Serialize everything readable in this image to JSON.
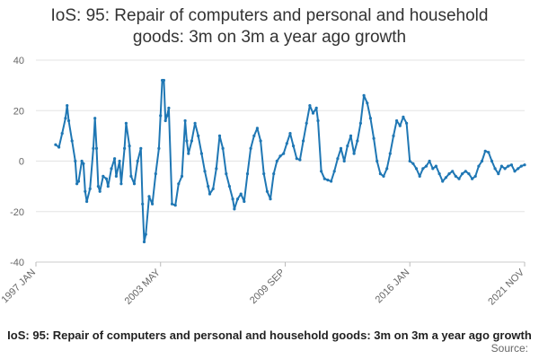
{
  "chart_data": {
    "type": "line",
    "title_lines": [
      "IoS: 95: Repair of computers and personal and household",
      "goods: 3m on 3m a year ago growth"
    ],
    "xlabel": "",
    "ylabel": "",
    "ylim": [
      -40,
      40
    ],
    "yticks": [
      40,
      20,
      0,
      -20,
      -40
    ],
    "xlim": [
      "1997-01",
      "2021-11"
    ],
    "xticks": [
      {
        "label": "1997 JAN",
        "date": "1997-01"
      },
      {
        "label": "2003 MAY",
        "date": "2003-05"
      },
      {
        "label": "2009 SEP",
        "date": "2009-09"
      },
      {
        "label": "2016 JAN",
        "date": "2016-01"
      },
      {
        "label": "2021 NOV",
        "date": "2021-11"
      }
    ],
    "grid": true,
    "legend": "none",
    "series": [
      {
        "color": "#1f77b4",
        "points": [
          [
            "1998-01",
            6.5
          ],
          [
            "1998-03",
            5.5
          ],
          [
            "1998-05",
            11
          ],
          [
            "1998-07",
            17
          ],
          [
            "1998-08",
            22
          ],
          [
            "1998-09",
            16
          ],
          [
            "1998-11",
            8
          ],
          [
            "1999-01",
            0
          ],
          [
            "1999-02",
            -9
          ],
          [
            "1999-03",
            -8
          ],
          [
            "1999-05",
            0
          ],
          [
            "1999-06",
            -1
          ],
          [
            "1999-07",
            -12
          ],
          [
            "1999-08",
            -16
          ],
          [
            "1999-10",
            -11
          ],
          [
            "1999-12",
            5
          ],
          [
            "2000-01",
            17
          ],
          [
            "2000-02",
            5
          ],
          [
            "2000-03",
            -10
          ],
          [
            "2000-04",
            -12
          ],
          [
            "2000-06",
            -6
          ],
          [
            "2000-08",
            -7
          ],
          [
            "2000-09",
            -10
          ],
          [
            "2000-11",
            -3
          ],
          [
            "2001-01",
            1
          ],
          [
            "2001-02",
            -6
          ],
          [
            "2001-04",
            0
          ],
          [
            "2001-05",
            -9
          ],
          [
            "2001-07",
            5
          ],
          [
            "2001-08",
            15
          ],
          [
            "2001-10",
            6
          ],
          [
            "2001-11",
            -6
          ],
          [
            "2002-01",
            -9
          ],
          [
            "2002-03",
            0
          ],
          [
            "2002-05",
            5
          ],
          [
            "2002-06",
            -17
          ],
          [
            "2002-07",
            -32
          ],
          [
            "2002-08",
            -29
          ],
          [
            "2002-10",
            -14
          ],
          [
            "2002-12",
            -17
          ],
          [
            "2003-02",
            -5
          ],
          [
            "2003-04",
            5
          ],
          [
            "2003-05",
            18
          ],
          [
            "2003-06",
            32
          ],
          [
            "2003-07",
            32
          ],
          [
            "2003-08",
            16
          ],
          [
            "2003-09",
            18
          ],
          [
            "2003-10",
            21
          ],
          [
            "2003-12",
            -17
          ],
          [
            "2004-02",
            -17.5
          ],
          [
            "2004-04",
            -9
          ],
          [
            "2004-06",
            -6
          ],
          [
            "2004-08",
            16
          ],
          [
            "2004-09",
            8
          ],
          [
            "2004-10",
            3
          ],
          [
            "2004-12",
            8
          ],
          [
            "2005-02",
            15
          ],
          [
            "2005-04",
            10
          ],
          [
            "2005-06",
            3
          ],
          [
            "2005-08",
            -4
          ],
          [
            "2005-10",
            -10
          ],
          [
            "2005-11",
            -13
          ],
          [
            "2006-01",
            -11
          ],
          [
            "2006-03",
            -3
          ],
          [
            "2006-05",
            10
          ],
          [
            "2006-07",
            5
          ],
          [
            "2006-09",
            -5
          ],
          [
            "2006-11",
            -10
          ],
          [
            "2007-01",
            -15
          ],
          [
            "2007-02",
            -19
          ],
          [
            "2007-04",
            -15
          ],
          [
            "2007-06",
            -13
          ],
          [
            "2007-08",
            -16
          ],
          [
            "2007-10",
            -5
          ],
          [
            "2007-12",
            5
          ],
          [
            "2008-02",
            10
          ],
          [
            "2008-04",
            13
          ],
          [
            "2008-06",
            8
          ],
          [
            "2008-08",
            -5
          ],
          [
            "2008-10",
            -12
          ],
          [
            "2008-12",
            -15
          ],
          [
            "2009-02",
            -5
          ],
          [
            "2009-04",
            0
          ],
          [
            "2009-06",
            2
          ],
          [
            "2009-08",
            3
          ],
          [
            "2009-10",
            7
          ],
          [
            "2009-12",
            11
          ],
          [
            "2010-02",
            6
          ],
          [
            "2010-04",
            1
          ],
          [
            "2010-06",
            0.5
          ],
          [
            "2010-08",
            8
          ],
          [
            "2010-10",
            15
          ],
          [
            "2010-12",
            22
          ],
          [
            "2011-02",
            19
          ],
          [
            "2011-04",
            21
          ],
          [
            "2011-05",
            16
          ],
          [
            "2011-07",
            -4
          ],
          [
            "2011-09",
            -7
          ],
          [
            "2011-11",
            -7.5
          ],
          [
            "2012-01",
            -8
          ],
          [
            "2012-03",
            -4
          ],
          [
            "2012-05",
            1
          ],
          [
            "2012-07",
            5
          ],
          [
            "2012-09",
            0
          ],
          [
            "2012-11",
            6
          ],
          [
            "2013-01",
            10
          ],
          [
            "2013-03",
            3
          ],
          [
            "2013-05",
            8
          ],
          [
            "2013-07",
            15
          ],
          [
            "2013-09",
            26
          ],
          [
            "2013-11",
            23
          ],
          [
            "2014-01",
            17
          ],
          [
            "2014-03",
            9
          ],
          [
            "2014-05",
            0
          ],
          [
            "2014-07",
            -5
          ],
          [
            "2014-09",
            -6
          ],
          [
            "2014-11",
            -3
          ],
          [
            "2015-01",
            3
          ],
          [
            "2015-03",
            10
          ],
          [
            "2015-05",
            16
          ],
          [
            "2015-07",
            14
          ],
          [
            "2015-09",
            17.5
          ],
          [
            "2015-11",
            15
          ],
          [
            "2016-01",
            0
          ],
          [
            "2016-03",
            -1
          ],
          [
            "2016-05",
            -3
          ],
          [
            "2016-07",
            -6
          ],
          [
            "2016-09",
            -3
          ],
          [
            "2016-11",
            -2
          ],
          [
            "2017-01",
            0
          ],
          [
            "2017-03",
            -3
          ],
          [
            "2017-05",
            -2
          ],
          [
            "2017-07",
            -5
          ],
          [
            "2017-09",
            -8
          ],
          [
            "2017-11",
            -6.5
          ],
          [
            "2018-01",
            -5
          ],
          [
            "2018-03",
            -4
          ],
          [
            "2018-05",
            -6
          ],
          [
            "2018-07",
            -7
          ],
          [
            "2018-09",
            -5
          ],
          [
            "2018-11",
            -4
          ],
          [
            "2019-01",
            -5
          ],
          [
            "2019-03",
            -7
          ],
          [
            "2019-05",
            -6
          ],
          [
            "2019-07",
            -2
          ],
          [
            "2019-09",
            0
          ],
          [
            "2019-11",
            4
          ],
          [
            "2020-01",
            3.5
          ],
          [
            "2020-03",
            0
          ],
          [
            "2020-05",
            -3
          ],
          [
            "2020-07",
            -5
          ],
          [
            "2020-09",
            -2
          ],
          [
            "2020-11",
            -3
          ],
          [
            "2021-01",
            -2
          ],
          [
            "2021-03",
            -1.5
          ],
          [
            "2021-05",
            -4
          ],
          [
            "2021-07",
            -3
          ],
          [
            "2021-09",
            -2
          ],
          [
            "2021-11",
            -1.5
          ]
        ]
      }
    ]
  },
  "footer": {
    "caption": "IoS: 95: Repair of computers and personal and household goods: 3m on 3m a year ago growth",
    "source": "Source:"
  }
}
